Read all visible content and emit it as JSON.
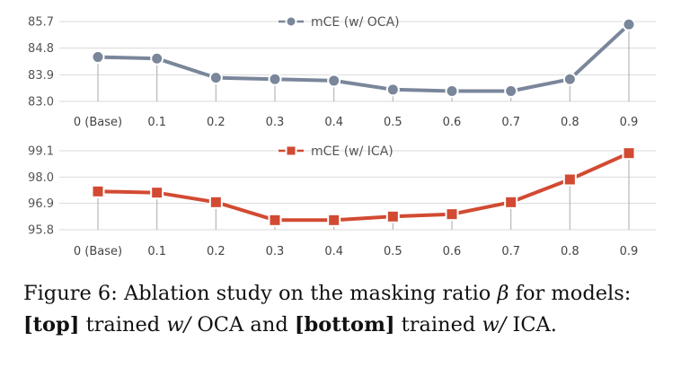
{
  "chart_data": [
    {
      "type": "line",
      "title": "",
      "xlabel": "",
      "ylabel": "",
      "categories": [
        "0 (Base)",
        "0.1",
        "0.2",
        "0.3",
        "0.4",
        "0.5",
        "0.6",
        "0.7",
        "0.8",
        "0.9"
      ],
      "series": [
        {
          "name": "mCE (w/ OCA)",
          "values": [
            84.5,
            84.45,
            83.8,
            83.75,
            83.7,
            83.4,
            83.35,
            83.35,
            83.75,
            85.6
          ],
          "color": "#7a869a",
          "marker": "circle"
        }
      ],
      "yticks": [
        83.0,
        83.9,
        84.8,
        85.7
      ],
      "ytick_labels": [
        "83.0",
        "83.9",
        "84.8",
        "85.7"
      ],
      "ylim": [
        83.0,
        85.7
      ],
      "grid": true,
      "legend_position": "top-center",
      "drop_lines": true
    },
    {
      "type": "line",
      "title": "",
      "xlabel": "",
      "ylabel": "",
      "categories": [
        "0 (Base)",
        "0.1",
        "0.2",
        "0.3",
        "0.4",
        "0.5",
        "0.6",
        "0.7",
        "0.8",
        "0.9"
      ],
      "series": [
        {
          "name": "mCE (w/ ICA)",
          "values": [
            97.4,
            97.35,
            96.95,
            96.2,
            96.2,
            96.35,
            96.45,
            96.95,
            97.9,
            99.0
          ],
          "color": "#d24a32",
          "marker": "square"
        }
      ],
      "yticks": [
        95.8,
        96.9,
        98.0,
        99.1
      ],
      "ytick_labels": [
        "95.8",
        "96.9",
        "98.0",
        "99.1"
      ],
      "ylim": [
        95.8,
        99.1
      ],
      "grid": true,
      "legend_position": "top-center",
      "drop_lines": true
    }
  ],
  "caption": {
    "line1_prefix": "Figure 6: Ablation study on the masking ratio ",
    "beta": "β",
    "line1_suffix": " for models:",
    "top_label": "[top]",
    "top_text": " trained ",
    "wslash1": "w/",
    "top_rest": " OCA and ",
    "bottom_label": "[bottom]",
    "bottom_text": " trained ",
    "wslash2": "w/",
    "bottom_rest": " ICA."
  }
}
